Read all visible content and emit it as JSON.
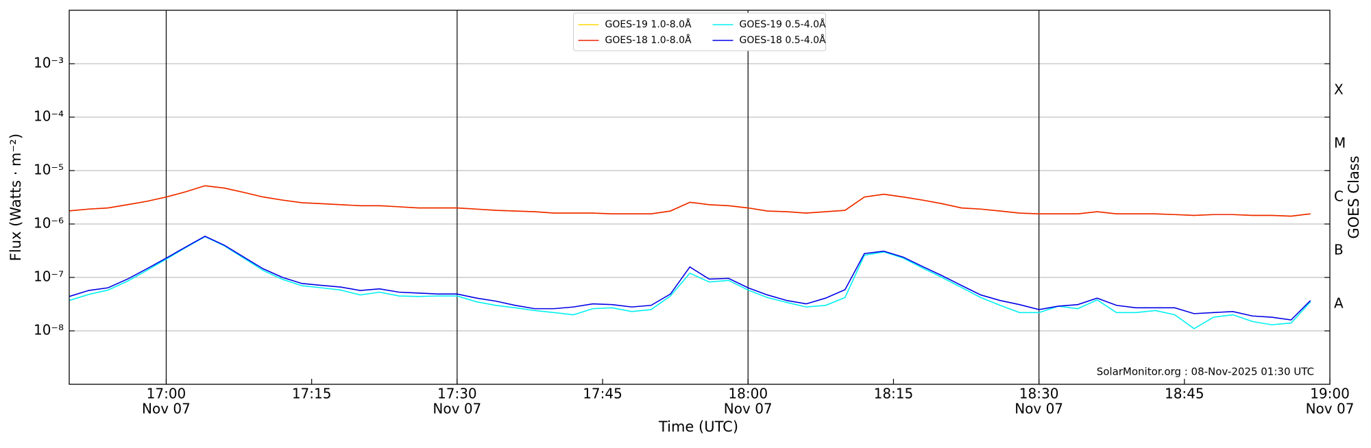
{
  "chart_data": {
    "type": "line",
    "xlabel": "Time (UTC)",
    "ylabel": "Flux (Watts · m⁻²)",
    "y2label": "GOES Class",
    "annotation": "SolarMonitor.org : 08-Nov-2025 01:30 UTC",
    "log_y": true,
    "grid": true,
    "legend": "upper center",
    "xlim": [
      "16:50",
      "19:00"
    ],
    "ylim": [
      1e-09,
      0.01
    ],
    "xticks": [
      {
        "value": "17:00",
        "label": "17:00",
        "sublabel": "Nov 07"
      },
      {
        "value": "17:15",
        "label": "17:15"
      },
      {
        "value": "17:30",
        "label": "17:30",
        "sublabel": "Nov 07"
      },
      {
        "value": "17:45",
        "label": "17:45"
      },
      {
        "value": "18:00",
        "label": "18:00",
        "sublabel": "Nov 07"
      },
      {
        "value": "18:15",
        "label": "18:15"
      },
      {
        "value": "18:30",
        "label": "18:30",
        "sublabel": "Nov 07"
      },
      {
        "value": "18:45",
        "label": "18:45"
      },
      {
        "value": "19:00",
        "label": "19:00",
        "sublabel": "Nov 07"
      }
    ],
    "x_grid_lines": [
      "17:00",
      "17:30",
      "18:00",
      "18:30"
    ],
    "yticks": [
      {
        "value": 1e-08,
        "label": "10⁻⁸"
      },
      {
        "value": 1e-07,
        "label": "10⁻⁷"
      },
      {
        "value": 1e-06,
        "label": "10⁻⁶"
      },
      {
        "value": 1e-05,
        "label": "10⁻⁵"
      },
      {
        "value": 0.0001,
        "label": "10⁻⁴"
      },
      {
        "value": 0.001,
        "label": "10⁻³"
      }
    ],
    "classes": [
      {
        "label": "A",
        "min": 1e-08,
        "max": 1e-07
      },
      {
        "label": "B",
        "min": 1e-07,
        "max": 1e-06
      },
      {
        "label": "C",
        "min": 1e-06,
        "max": 1e-05
      },
      {
        "label": "M",
        "min": 1e-05,
        "max": 0.0001
      },
      {
        "label": "X",
        "min": 0.0001,
        "max": 0.001
      }
    ],
    "x": [
      "16:50",
      "16:52",
      "16:54",
      "16:56",
      "16:58",
      "17:00",
      "17:02",
      "17:04",
      "17:06",
      "17:08",
      "17:10",
      "17:12",
      "17:14",
      "17:16",
      "17:18",
      "17:20",
      "17:22",
      "17:24",
      "17:26",
      "17:28",
      "17:30",
      "17:32",
      "17:34",
      "17:36",
      "17:38",
      "17:40",
      "17:42",
      "17:44",
      "17:46",
      "17:48",
      "17:50",
      "17:52",
      "17:54",
      "17:56",
      "17:58",
      "18:00",
      "18:02",
      "18:04",
      "18:06",
      "18:08",
      "18:10",
      "18:12",
      "18:14",
      "18:16",
      "18:18",
      "18:20",
      "18:22",
      "18:24",
      "18:26",
      "18:28",
      "18:30",
      "18:32",
      "18:34",
      "18:36",
      "18:38",
      "18:40",
      "18:42",
      "18:44",
      "18:46",
      "18:48",
      "18:50",
      "18:52",
      "18:54",
      "18:56",
      "18:58"
    ],
    "series": [
      {
        "name": "GOES-19 1.0-8.0Å",
        "color": "#ffd700",
        "values": [
          1.76e-06,
          1.9e-06,
          2e-06,
          2.3e-06,
          2.66e-06,
          3.2e-06,
          4e-06,
          5.2e-06,
          4.7e-06,
          3.9e-06,
          3.2e-06,
          2.8e-06,
          2.5e-06,
          2.4e-06,
          2.3e-06,
          2.2e-06,
          2.2e-06,
          2.1e-06,
          2e-06,
          2e-06,
          2e-06,
          1.9e-06,
          1.8e-06,
          1.75e-06,
          1.7e-06,
          1.6e-06,
          1.6e-06,
          1.6e-06,
          1.55e-06,
          1.55e-06,
          1.55e-06,
          1.75e-06,
          2.55e-06,
          2.3e-06,
          2.2e-06,
          2e-06,
          1.75e-06,
          1.7e-06,
          1.6e-06,
          1.7e-06,
          1.8e-06,
          3.2e-06,
          3.6e-06,
          3.2e-06,
          2.8e-06,
          2.4e-06,
          2e-06,
          1.9e-06,
          1.75e-06,
          1.6e-06,
          1.55e-06,
          1.55e-06,
          1.55e-06,
          1.7e-06,
          1.55e-06,
          1.55e-06,
          1.55e-06,
          1.5e-06,
          1.45e-06,
          1.5e-06,
          1.5e-06,
          1.45e-06,
          1.45e-06,
          1.4e-06,
          1.55e-06
        ]
      },
      {
        "name": "GOES-18 1.0-8.0Å",
        "color": "#ee2200",
        "values": [
          1.76e-06,
          1.9e-06,
          2e-06,
          2.3e-06,
          2.66e-06,
          3.2e-06,
          4e-06,
          5.2e-06,
          4.7e-06,
          3.9e-06,
          3.2e-06,
          2.8e-06,
          2.5e-06,
          2.4e-06,
          2.3e-06,
          2.2e-06,
          2.2e-06,
          2.1e-06,
          2e-06,
          2e-06,
          2e-06,
          1.9e-06,
          1.8e-06,
          1.75e-06,
          1.7e-06,
          1.6e-06,
          1.6e-06,
          1.6e-06,
          1.55e-06,
          1.55e-06,
          1.55e-06,
          1.75e-06,
          2.55e-06,
          2.3e-06,
          2.2e-06,
          2e-06,
          1.75e-06,
          1.7e-06,
          1.6e-06,
          1.7e-06,
          1.8e-06,
          3.2e-06,
          3.6e-06,
          3.2e-06,
          2.8e-06,
          2.4e-06,
          2e-06,
          1.9e-06,
          1.75e-06,
          1.6e-06,
          1.55e-06,
          1.55e-06,
          1.55e-06,
          1.7e-06,
          1.55e-06,
          1.55e-06,
          1.55e-06,
          1.5e-06,
          1.45e-06,
          1.5e-06,
          1.5e-06,
          1.45e-06,
          1.45e-06,
          1.4e-06,
          1.55e-06
        ]
      },
      {
        "name": "GOES-19 0.5-4.0Å",
        "color": "#00f0f0",
        "values": [
          3.7e-08,
          4.8e-08,
          5.8e-08,
          8.5e-08,
          1.35e-07,
          2.2e-07,
          3.6e-07,
          5.8e-07,
          3.9e-07,
          2.3e-07,
          1.35e-07,
          9.2e-08,
          7e-08,
          6.4e-08,
          5.8e-08,
          4.7e-08,
          5.3e-08,
          4.5e-08,
          4.4e-08,
          4.5e-08,
          4.5e-08,
          3.5e-08,
          3e-08,
          2.7e-08,
          2.4e-08,
          2.2e-08,
          2e-08,
          2.6e-08,
          2.7e-08,
          2.3e-08,
          2.5e-08,
          4.5e-08,
          1.2e-07,
          8.2e-08,
          8.8e-08,
          5.8e-08,
          4.2e-08,
          3.4e-08,
          2.8e-08,
          3e-08,
          4.2e-08,
          2.6e-07,
          3e-07,
          2.3e-07,
          1.5e-07,
          1e-07,
          6.5e-08,
          4.2e-08,
          3e-08,
          2.2e-08,
          2.2e-08,
          2.9e-08,
          2.6e-08,
          3.8e-08,
          2.2e-08,
          2.2e-08,
          2.4e-08,
          2e-08,
          1.1e-08,
          1.8e-08,
          2e-08,
          1.5e-08,
          1.3e-08,
          1.4e-08,
          3.5e-08
        ]
      },
      {
        "name": "GOES-18 0.5-4.0Å",
        "color": "#0000e6",
        "values": [
          4.4e-08,
          5.7e-08,
          6.4e-08,
          9.3e-08,
          1.45e-07,
          2.3e-07,
          3.7e-07,
          5.9e-07,
          4e-07,
          2.4e-07,
          1.45e-07,
          1e-07,
          7.7e-08,
          7.1e-08,
          6.6e-08,
          5.7e-08,
          6.1e-08,
          5.3e-08,
          5.1e-08,
          4.9e-08,
          4.9e-08,
          4.1e-08,
          3.6e-08,
          3e-08,
          2.6e-08,
          2.6e-08,
          2.8e-08,
          3.2e-08,
          3.1e-08,
          2.8e-08,
          3e-08,
          4.9e-08,
          1.57e-07,
          9.3e-08,
          9.6e-08,
          6.4e-08,
          4.7e-08,
          3.7e-08,
          3.2e-08,
          4.1e-08,
          5.9e-08,
          2.8e-07,
          3.1e-07,
          2.4e-07,
          1.6e-07,
          1.08e-07,
          7.1e-08,
          4.7e-08,
          3.7e-08,
          3.1e-08,
          2.5e-08,
          2.9e-08,
          3.1e-08,
          4.1e-08,
          3e-08,
          2.7e-08,
          2.7e-08,
          2.7e-08,
          2.1e-08,
          2.2e-08,
          2.3e-08,
          1.9e-08,
          1.8e-08,
          1.6e-08,
          3.7e-08
        ]
      }
    ]
  }
}
